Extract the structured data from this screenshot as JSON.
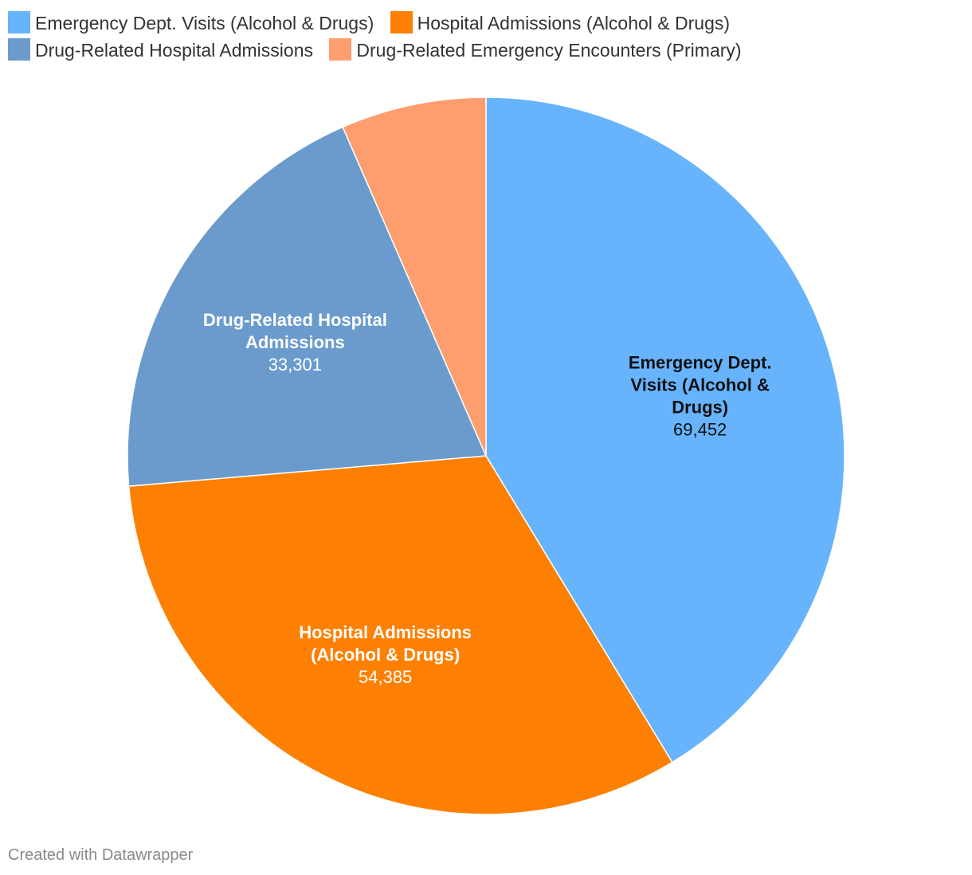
{
  "chart_data": {
    "type": "pie",
    "slices": [
      {
        "label": "Emergency Dept. Visits (Alcohol & Drugs)",
        "label_lines": [
          "Emergency Dept.",
          "Visits (Alcohol &",
          "Drugs)"
        ],
        "value": 69452,
        "value_text": "69,452",
        "color": "#67b4fc",
        "text_color": "#111111"
      },
      {
        "label": "Hospital Admissions (Alcohol & Drugs)",
        "label_lines": [
          "Hospital Admissions",
          "(Alcohol & Drugs)"
        ],
        "value": 54385,
        "value_text": "54,385",
        "color": "#fd8003",
        "text_color": "#ffffff"
      },
      {
        "label": "Drug-Related Hospital Admissions",
        "label_lines": [
          "Drug-Related Hospital",
          "Admissions"
        ],
        "value": 33301,
        "value_text": "33,301",
        "color": "#6a9bcc",
        "text_color": "#ffffff"
      },
      {
        "label": "Drug-Related Emergency Encounters (Primary)",
        "label_lines": [],
        "value": 11000,
        "value_text": "",
        "color": "#fe9d6e",
        "text_color": "#ffffff"
      }
    ],
    "legend_position": "top-left"
  },
  "legend": [
    {
      "label": "Emergency Dept. Visits (Alcohol & Drugs)",
      "color": "#67b4fc"
    },
    {
      "label": "Hospital Admissions (Alcohol & Drugs)",
      "color": "#fd8003"
    },
    {
      "label": "Drug-Related Hospital Admissions",
      "color": "#6a9bcc"
    },
    {
      "label": "Drug-Related Emergency Encounters (Primary)",
      "color": "#fe9d6e"
    }
  ],
  "credit": "Created with Datawrapper"
}
